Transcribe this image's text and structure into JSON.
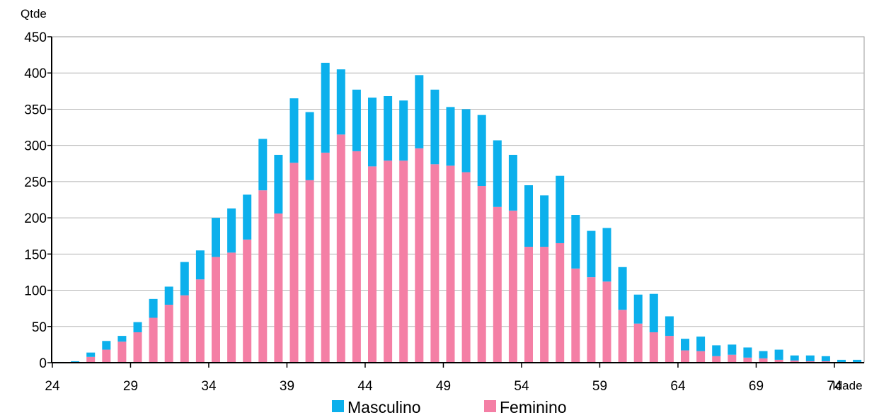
{
  "chart_data": {
    "type": "bar",
    "stacked": true,
    "xlabel": "Idade",
    "ylabel": "Qtde",
    "ylim": [
      0,
      450
    ],
    "y_ticks": [
      0,
      50,
      100,
      150,
      200,
      250,
      300,
      350,
      400,
      450
    ],
    "x_tick_labels": [
      "24",
      "29",
      "34",
      "39",
      "44",
      "49",
      "54",
      "59",
      "64",
      "69",
      "74"
    ],
    "grid": true,
    "legend_position": "bottom",
    "categories": [
      24,
      25,
      26,
      27,
      28,
      29,
      30,
      31,
      32,
      33,
      34,
      35,
      36,
      37,
      38,
      39,
      40,
      41,
      42,
      43,
      44,
      45,
      46,
      47,
      48,
      49,
      50,
      51,
      52,
      53,
      54,
      55,
      56,
      57,
      58,
      59,
      60,
      61,
      62,
      63,
      64,
      65,
      66,
      67,
      68,
      69,
      70,
      71,
      72,
      73,
      74,
      75
    ],
    "series": [
      {
        "name": "Feminino",
        "color": "#f47fa5",
        "values": [
          0,
          1,
          8,
          18,
          29,
          42,
          62,
          80,
          93,
          115,
          146,
          152,
          170,
          238,
          206,
          276,
          252,
          290,
          315,
          292,
          271,
          279,
          279,
          296,
          274,
          272,
          263,
          244,
          215,
          210,
          160,
          160,
          165,
          130,
          118,
          112,
          73,
          54,
          42,
          37,
          17,
          16,
          9,
          11,
          7,
          6,
          4,
          3,
          2,
          2,
          1,
          1
        ]
      },
      {
        "name": "Masculino",
        "color": "#0cb0ec",
        "values": [
          1,
          1,
          6,
          12,
          8,
          14,
          26,
          25,
          46,
          40,
          54,
          61,
          62,
          71,
          81,
          89,
          94,
          124,
          90,
          85,
          95,
          89,
          83,
          101,
          103,
          81,
          87,
          98,
          92,
          77,
          85,
          71,
          93,
          74,
          64,
          74,
          59,
          40,
          53,
          27,
          16,
          20,
          15,
          14,
          14,
          10,
          14,
          7,
          8,
          7,
          3,
          3
        ]
      }
    ]
  }
}
